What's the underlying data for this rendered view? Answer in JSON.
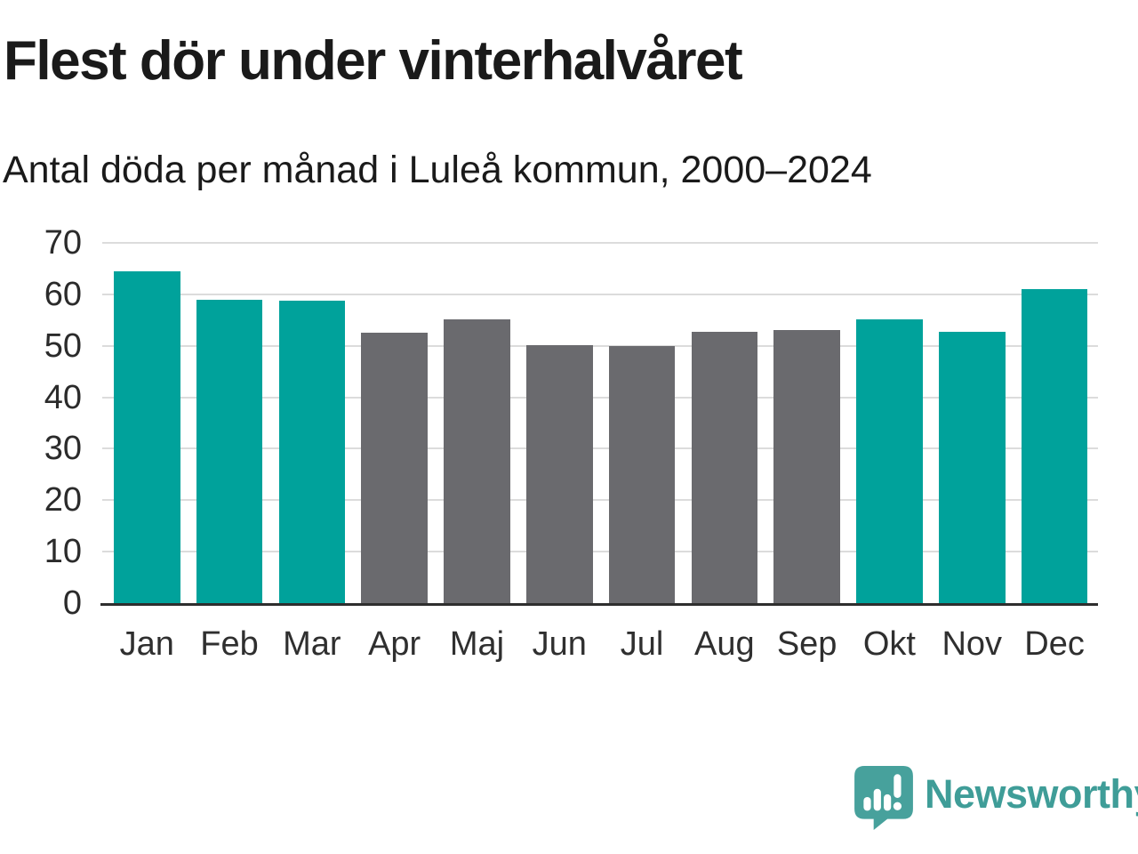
{
  "header": {
    "title": "Flest dör under vinterhalvåret",
    "subtitle": "Antal döda per månad i Luleå kommun, 2000–2024"
  },
  "chart_data": {
    "type": "bar",
    "title": "Flest dör under vinterhalvåret",
    "subtitle": "Antal döda per månad i Luleå kommun, 2000–2024",
    "categories": [
      "Jan",
      "Feb",
      "Mar",
      "Apr",
      "Maj",
      "Jun",
      "Jul",
      "Aug",
      "Sep",
      "Okt",
      "Nov",
      "Dec"
    ],
    "values": [
      64.5,
      59.0,
      58.8,
      52.5,
      55.2,
      50.2,
      50.0,
      52.8,
      53.0,
      55.1,
      52.8,
      61.0
    ],
    "bar_color_keys": [
      "highlight",
      "highlight",
      "highlight",
      "base",
      "base",
      "base",
      "base",
      "base",
      "base",
      "highlight",
      "highlight",
      "highlight"
    ],
    "colors": {
      "highlight": "#00A29B",
      "base": "#6A6A6E"
    },
    "xlabel": "",
    "ylabel": "",
    "ylim": [
      0,
      70
    ],
    "yticks": [
      70,
      60,
      50,
      40,
      30,
      20,
      10,
      0
    ],
    "grid": true,
    "legend": false,
    "gridline_color": "#DCDCDC",
    "axis_line_color": "#2E2E2E"
  },
  "footer": {
    "brand_name": "Newsworthy",
    "brand_color": "#3F9D98",
    "logo_color": "#47A19C",
    "logo_icon": "newsworthy-speech-bubble-bar-chart-icon"
  }
}
